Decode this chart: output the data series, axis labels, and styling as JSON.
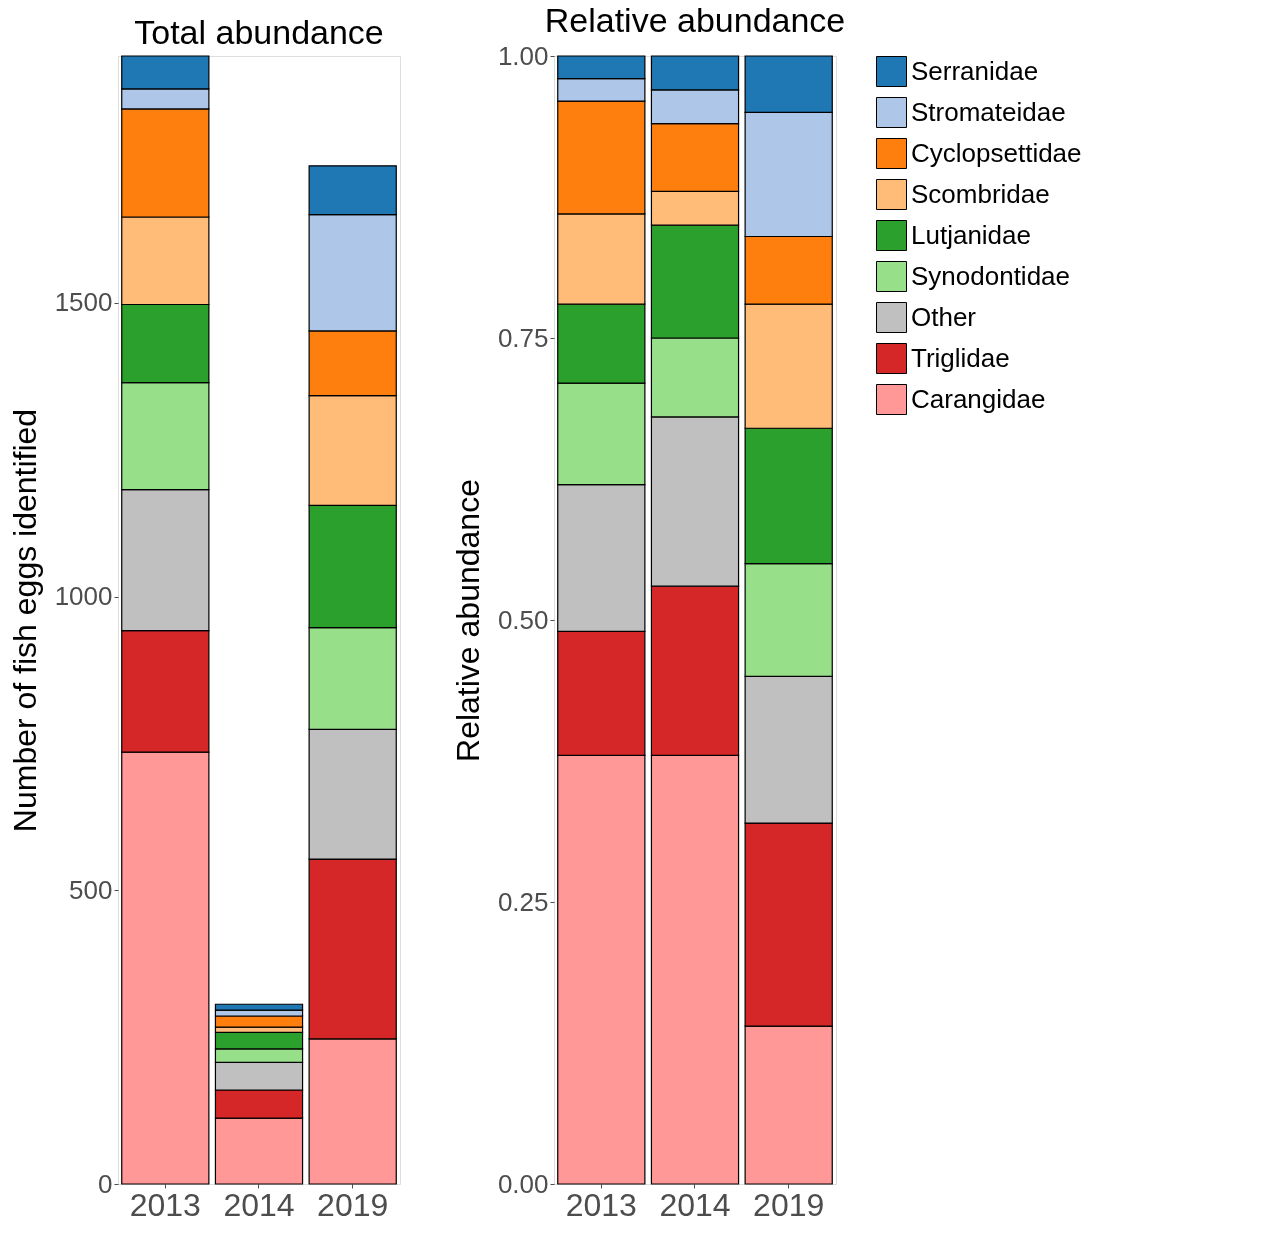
{
  "chart_data": [
    {
      "type": "bar",
      "stacked": true,
      "title": "Total abundance",
      "ylabel": "Number of fish eggs identified",
      "categories": [
        "2013",
        "2014",
        "2019"
      ],
      "ylim": [
        0,
        1920
      ],
      "yticks": [
        0,
        500,
        1000,
        1500
      ],
      "grid": false,
      "legend": "right",
      "series": [
        {
          "name": "Carangidae",
          "color": "#ff9896",
          "values": [
            735,
            112,
            247
          ]
        },
        {
          "name": "Triglidae",
          "color": "#d62728",
          "values": [
            207,
            48,
            306
          ]
        },
        {
          "name": "Other",
          "color": "#c0c0c0",
          "values": [
            240,
            47,
            221
          ]
        },
        {
          "name": "Synodontidae",
          "color": "#98df8a",
          "values": [
            182,
            23,
            173
          ]
        },
        {
          "name": "Lutjanidae",
          "color": "#2ca02c",
          "values": [
            133,
            28,
            208
          ]
        },
        {
          "name": "Scombridae",
          "color": "#ffbb78",
          "values": [
            149,
            9,
            187
          ]
        },
        {
          "name": "Cyclopsettidae",
          "color": "#ff7f0e",
          "values": [
            184,
            19,
            110
          ]
        },
        {
          "name": "Stromateidae",
          "color": "#aec7e8",
          "values": [
            34,
            10,
            198
          ]
        },
        {
          "name": "Serranidae",
          "color": "#1f77b4",
          "values": [
            56,
            10,
            83
          ]
        }
      ]
    },
    {
      "type": "bar",
      "stacked": true,
      "title": "Relative abundance",
      "ylabel": "Relative abundance",
      "categories": [
        "2013",
        "2014",
        "2019"
      ],
      "ylim": [
        0,
        1
      ],
      "yticks": [
        {
          "value": 0,
          "label": "0.00"
        },
        {
          "value": 0.25,
          "label": "0.25"
        },
        {
          "value": 0.5,
          "label": "0.50"
        },
        {
          "value": 0.75,
          "label": "0.75"
        },
        {
          "value": 1,
          "label": "1.00"
        }
      ],
      "grid": false,
      "legend": "right",
      "series": [
        {
          "name": "Carangidae",
          "color": "#ff9896",
          "values": [
            0.38,
            0.38,
            0.14
          ]
        },
        {
          "name": "Triglidae",
          "color": "#d62728",
          "values": [
            0.11,
            0.15,
            0.18
          ]
        },
        {
          "name": "Other",
          "color": "#c0c0c0",
          "values": [
            0.13,
            0.15,
            0.13
          ]
        },
        {
          "name": "Synodontidae",
          "color": "#98df8a",
          "values": [
            0.09,
            0.07,
            0.1
          ]
        },
        {
          "name": "Lutjanidae",
          "color": "#2ca02c",
          "values": [
            0.07,
            0.1,
            0.12
          ]
        },
        {
          "name": "Scombridae",
          "color": "#ffbb78",
          "values": [
            0.08,
            0.03,
            0.11
          ]
        },
        {
          "name": "Cyclopsettidae",
          "color": "#ff7f0e",
          "values": [
            0.1,
            0.06,
            0.06
          ]
        },
        {
          "name": "Stromateidae",
          "color": "#aec7e8",
          "values": [
            0.02,
            0.03,
            0.11
          ]
        },
        {
          "name": "Serranidae",
          "color": "#1f77b4",
          "values": [
            0.02,
            0.03,
            0.05
          ]
        }
      ]
    }
  ]
}
